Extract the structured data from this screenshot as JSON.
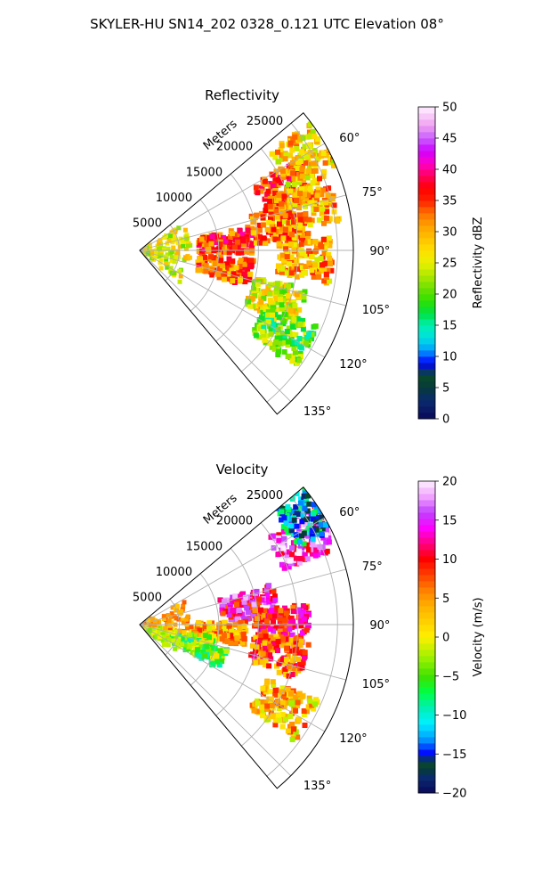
{
  "figure": {
    "suptitle": "SKYLER-HU  SN14_202  0328_0.121 UTC Elevation 08°"
  },
  "chart_data": [
    {
      "type": "heatmap",
      "projection": "polar-sector",
      "title": "Reflectivity",
      "radial_label": "Meters",
      "radial_ticks": [
        5000,
        10000,
        15000,
        20000,
        25000
      ],
      "radial_tick_labels": [
        "5000",
        "10000",
        "15000",
        "20000",
        "25000"
      ],
      "rlim": [
        0,
        27000
      ],
      "theta_range_deg": [
        50,
        140
      ],
      "theta_ticks": [
        "60°",
        "75°",
        "90°",
        "105°",
        "120°",
        "135°"
      ],
      "grid": true,
      "colorbar": {
        "label": "Reflectivity dBZ",
        "range": [
          0,
          50
        ],
        "ticks": [
          "0",
          "5",
          "10",
          "15",
          "20",
          "25",
          "30",
          "35",
          "40",
          "45",
          "50"
        ],
        "colormap": "pyart_NWSRef"
      },
      "echo_regions": [
        {
          "theta": 85,
          "r": 11000,
          "value": 35
        },
        {
          "theta": 102,
          "r": 11000,
          "value": 33
        },
        {
          "theta": 80,
          "r": 18000,
          "value": 32
        },
        {
          "theta": 67,
          "r": 20000,
          "value": 34
        },
        {
          "theta": 93,
          "r": 21000,
          "value": 30
        },
        {
          "theta": 60,
          "r": 24000,
          "value": 28
        },
        {
          "theta": 75,
          "r": 22000,
          "value": 30
        },
        {
          "theta": 110,
          "r": 18500,
          "value": 25
        },
        {
          "theta": 120,
          "r": 21000,
          "value": 20
        }
      ]
    },
    {
      "type": "heatmap",
      "projection": "polar-sector",
      "title": "Velocity",
      "radial_label": "Meters",
      "radial_ticks": [
        5000,
        10000,
        15000,
        20000,
        25000
      ],
      "radial_tick_labels": [
        "5000",
        "10000",
        "15000",
        "20000",
        "25000"
      ],
      "rlim": [
        0,
        27000
      ],
      "theta_range_deg": [
        50,
        140
      ],
      "theta_ticks": [
        "60°",
        "75°",
        "90°",
        "105°",
        "120°",
        "135°"
      ],
      "grid": true,
      "colorbar": {
        "label": "Velocity (m/s)",
        "range": [
          -20,
          20
        ],
        "ticks": [
          "−20",
          "−15",
          "−10",
          "−5",
          "0",
          "5",
          "10",
          "15",
          "20"
        ],
        "colormap": "pyart_NWSVel"
      },
      "echo_regions": [
        {
          "theta": 80,
          "r": 14000,
          "value": 13
        },
        {
          "theta": 90,
          "r": 18000,
          "value": 10
        },
        {
          "theta": 95,
          "r": 10000,
          "value": 4
        },
        {
          "theta": 102,
          "r": 18000,
          "value": 7
        },
        {
          "theta": 106,
          "r": 6000,
          "value": -1
        },
        {
          "theta": 112,
          "r": 8000,
          "value": -4
        },
        {
          "theta": 120,
          "r": 21000,
          "value": 3
        },
        {
          "theta": 62,
          "r": 23000,
          "value": 15
        },
        {
          "theta": 57,
          "r": 25500,
          "value": -12
        }
      ]
    }
  ]
}
